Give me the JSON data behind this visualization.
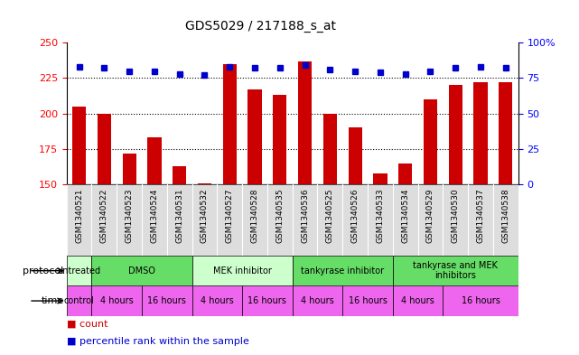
{
  "title": "GDS5029 / 217188_s_at",
  "samples": [
    "GSM1340521",
    "GSM1340522",
    "GSM1340523",
    "GSM1340524",
    "GSM1340531",
    "GSM1340532",
    "GSM1340527",
    "GSM1340528",
    "GSM1340535",
    "GSM1340536",
    "GSM1340525",
    "GSM1340526",
    "GSM1340533",
    "GSM1340534",
    "GSM1340529",
    "GSM1340530",
    "GSM1340537",
    "GSM1340538"
  ],
  "bar_values": [
    205,
    200,
    172,
    183,
    163,
    151,
    235,
    217,
    213,
    237,
    200,
    190,
    158,
    165,
    210,
    220,
    222,
    222
  ],
  "percentile_values": [
    83,
    82,
    80,
    80,
    78,
    77,
    83,
    82,
    82,
    84,
    81,
    80,
    79,
    78,
    80,
    82,
    83,
    82
  ],
  "bar_color": "#cc0000",
  "dot_color": "#0000cc",
  "ylim_left": [
    150,
    250
  ],
  "ylim_right": [
    0,
    100
  ],
  "yticks_left": [
    150,
    175,
    200,
    225,
    250
  ],
  "yticks_right": [
    0,
    25,
    50,
    75,
    100
  ],
  "grid_values": [
    175,
    200,
    225
  ],
  "protocol_groups": [
    {
      "label": "untreated",
      "color": "#ccffcc",
      "start": 0,
      "end": 1
    },
    {
      "label": "DMSO",
      "color": "#66dd66",
      "start": 1,
      "end": 5
    },
    {
      "label": "MEK inhibitor",
      "color": "#ccffcc",
      "start": 5,
      "end": 9
    },
    {
      "label": "tankyrase inhibitor",
      "color": "#66dd66",
      "start": 9,
      "end": 13
    },
    {
      "label": "tankyrase and MEK\ninhibitors",
      "color": "#66dd66",
      "start": 13,
      "end": 18
    }
  ],
  "time_groups": [
    {
      "label": "control",
      "color": "#ee66ee",
      "start": 0,
      "end": 1
    },
    {
      "label": "4 hours",
      "color": "#ee66ee",
      "start": 1,
      "end": 3
    },
    {
      "label": "16 hours",
      "color": "#ee66ee",
      "start": 3,
      "end": 5
    },
    {
      "label": "4 hours",
      "color": "#ee66ee",
      "start": 5,
      "end": 7
    },
    {
      "label": "16 hours",
      "color": "#ee66ee",
      "start": 7,
      "end": 9
    },
    {
      "label": "4 hours",
      "color": "#ee66ee",
      "start": 9,
      "end": 11
    },
    {
      "label": "16 hours",
      "color": "#ee66ee",
      "start": 11,
      "end": 13
    },
    {
      "label": "4 hours",
      "color": "#ee66ee",
      "start": 13,
      "end": 15
    },
    {
      "label": "16 hours",
      "color": "#ee66ee",
      "start": 15,
      "end": 18
    }
  ],
  "xticklabel_bg": "#dddddd",
  "background_color": "#ffffff"
}
